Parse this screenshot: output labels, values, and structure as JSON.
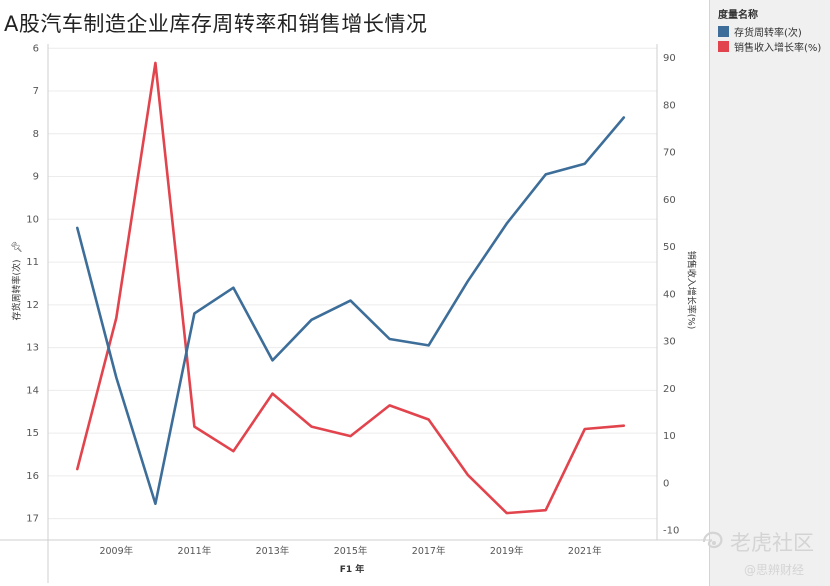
{
  "chart_data": {
    "type": "line",
    "title": "A股汽车制造企业库存周转率和销售增长情况",
    "xlabel": "F1 年",
    "x": [
      2008,
      2009,
      2010,
      2011,
      2012,
      2013,
      2014,
      2015,
      2016,
      2017,
      2018,
      2019,
      2020,
      2021,
      2022
    ],
    "x_ticks": [
      2009,
      2011,
      2013,
      2015,
      2017,
      2019,
      2021
    ],
    "x_tick_labels": [
      "2009年",
      "2011年",
      "2013年",
      "2015年",
      "2017年",
      "2019年",
      "2021年"
    ],
    "y_left": {
      "label": "存货周转率(次)",
      "inverted": true,
      "range": [
        5.9,
        17.5
      ],
      "ticks": [
        6,
        7,
        8,
        9,
        10,
        11,
        12,
        13,
        14,
        15,
        16,
        17
      ]
    },
    "y_right": {
      "label": "销售收入增长率(%)",
      "range": [
        -12,
        93
      ],
      "ticks": [
        90,
        80,
        70,
        60,
        50,
        40,
        30,
        20,
        10,
        0,
        -10
      ]
    },
    "series": [
      {
        "name": "存货周转率(次)",
        "axis": "left",
        "color": "#3d6e99",
        "values": [
          10.2,
          13.7,
          16.65,
          12.2,
          11.6,
          13.3,
          12.35,
          11.9,
          12.8,
          12.95,
          11.45,
          10.1,
          8.95,
          8.7,
          7.62
        ]
      },
      {
        "name": "销售收入增长率(%)",
        "axis": "right",
        "color": "#e2444d",
        "values": [
          3.0,
          35.0,
          89.0,
          12.0,
          6.8,
          19.0,
          12.0,
          10.0,
          16.5,
          13.5,
          1.8,
          -6.3,
          -5.7,
          11.5,
          12.2
        ]
      }
    ],
    "grid": true,
    "legend": {
      "title": "度量名称",
      "placement": "right",
      "entries": [
        "存货周转率(次)",
        "销售收入增长率(%)"
      ]
    }
  },
  "watermark": {
    "main": "老虎社区",
    "sub": "@思辨财经"
  }
}
